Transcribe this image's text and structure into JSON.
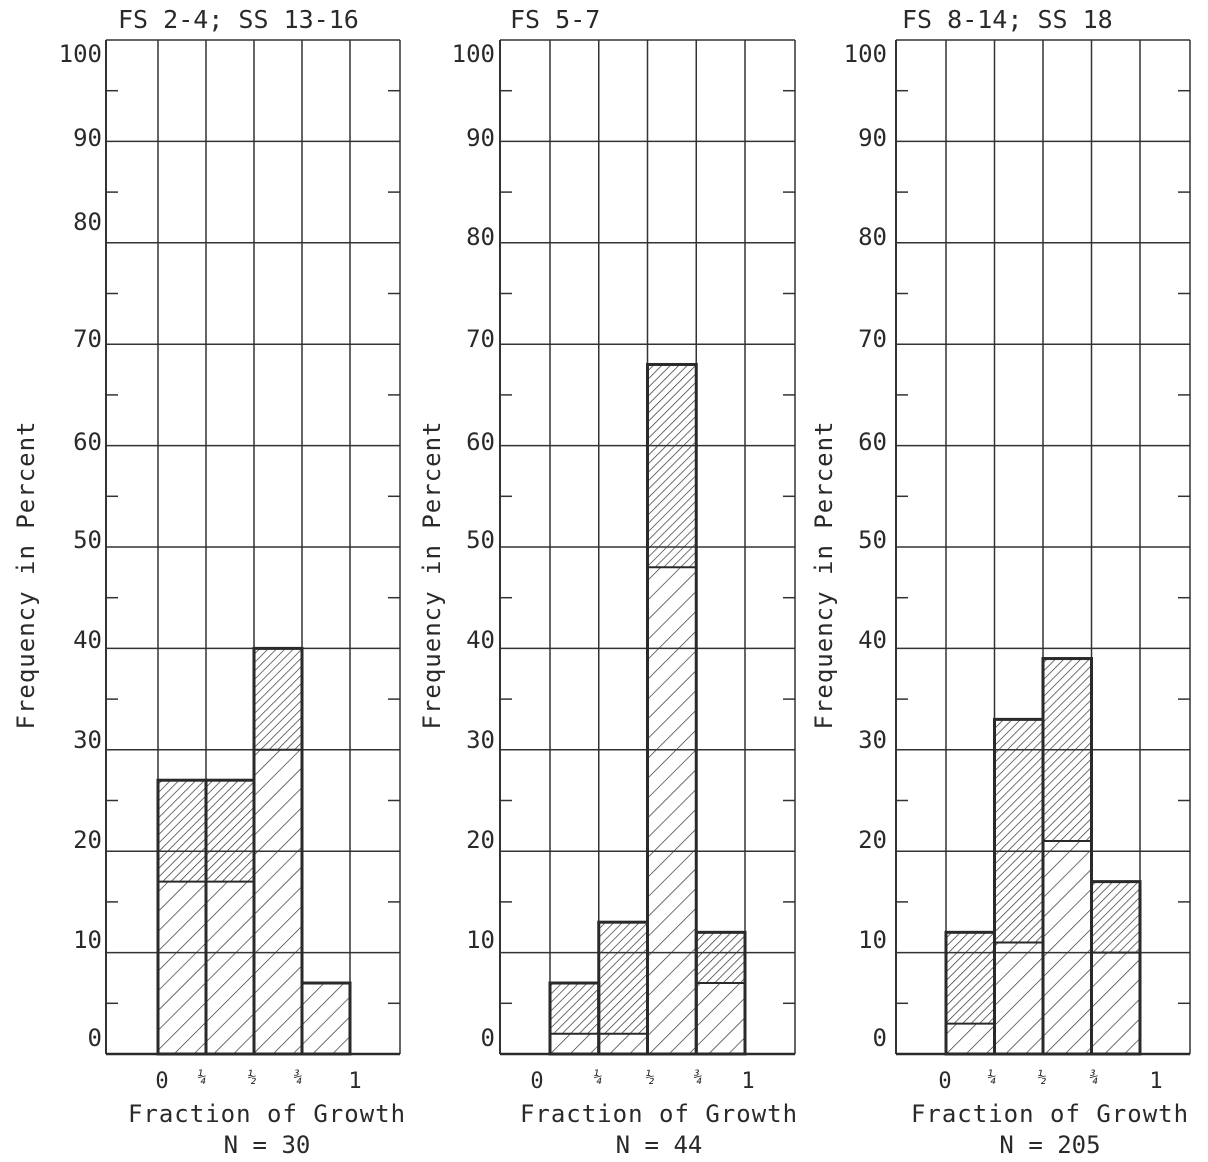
{
  "chart_data": [
    {
      "type": "bar",
      "title": "FS 2-4; SS 13-16",
      "xlabel": "Fraction of Growth",
      "ylabel": "Frequency in Percent",
      "note": "N = 30",
      "x_ticks": [
        "0",
        "¼",
        "½",
        "¾",
        "1"
      ],
      "y_ticks": [
        "100",
        "90",
        "80",
        "70",
        "60",
        "50",
        "40",
        "30",
        "20",
        "10",
        "0"
      ],
      "ylim": [
        0,
        100
      ],
      "grid": true,
      "bins": [
        {
          "from": 0.0,
          "to": 0.25,
          "total": 27,
          "lower": 17
        },
        {
          "from": 0.25,
          "to": 0.5,
          "total": 27,
          "lower": 17
        },
        {
          "from": 0.5,
          "to": 0.75,
          "total": 40,
          "lower": 30
        },
        {
          "from": 0.75,
          "to": 1.0,
          "total": 7,
          "lower": 7
        }
      ]
    },
    {
      "type": "bar",
      "title": "FS 5-7",
      "xlabel": "Fraction of Growth",
      "ylabel": "Frequency in Percent",
      "note": "N = 44",
      "x_ticks": [
        "0",
        "¼",
        "½",
        "¾",
        "1"
      ],
      "y_ticks": [
        "100",
        "90",
        "80",
        "70",
        "60",
        "50",
        "40",
        "30",
        "20",
        "10",
        "0"
      ],
      "ylim": [
        0,
        100
      ],
      "grid": true,
      "bins": [
        {
          "from": 0.0,
          "to": 0.25,
          "total": 7,
          "lower": 2
        },
        {
          "from": 0.25,
          "to": 0.5,
          "total": 13,
          "lower": 2
        },
        {
          "from": 0.5,
          "to": 0.75,
          "total": 68,
          "lower": 48
        },
        {
          "from": 0.75,
          "to": 1.0,
          "total": 12,
          "lower": 7
        }
      ]
    },
    {
      "type": "bar",
      "title": "FS 8-14; SS 18",
      "xlabel": "Fraction of Growth",
      "ylabel": "Frequency in Percent",
      "note": "N = 205",
      "x_ticks": [
        "0",
        "¼",
        "½",
        "¾",
        "1"
      ],
      "y_ticks": [
        "100",
        "90",
        "80",
        "70",
        "60",
        "50",
        "40",
        "30",
        "20",
        "10",
        "0"
      ],
      "ylim": [
        0,
        100
      ],
      "grid": true,
      "bins": [
        {
          "from": 0.0,
          "to": 0.25,
          "total": 12,
          "lower": 3
        },
        {
          "from": 0.25,
          "to": 0.5,
          "total": 33,
          "lower": 11
        },
        {
          "from": 0.5,
          "to": 0.75,
          "total": 39,
          "lower": 21
        },
        {
          "from": 0.75,
          "to": 1.0,
          "total": 17,
          "lower": 10
        }
      ]
    }
  ],
  "colors": {
    "ink": "#2a2a2a",
    "grid": "#333333",
    "background": "#ffffff"
  }
}
